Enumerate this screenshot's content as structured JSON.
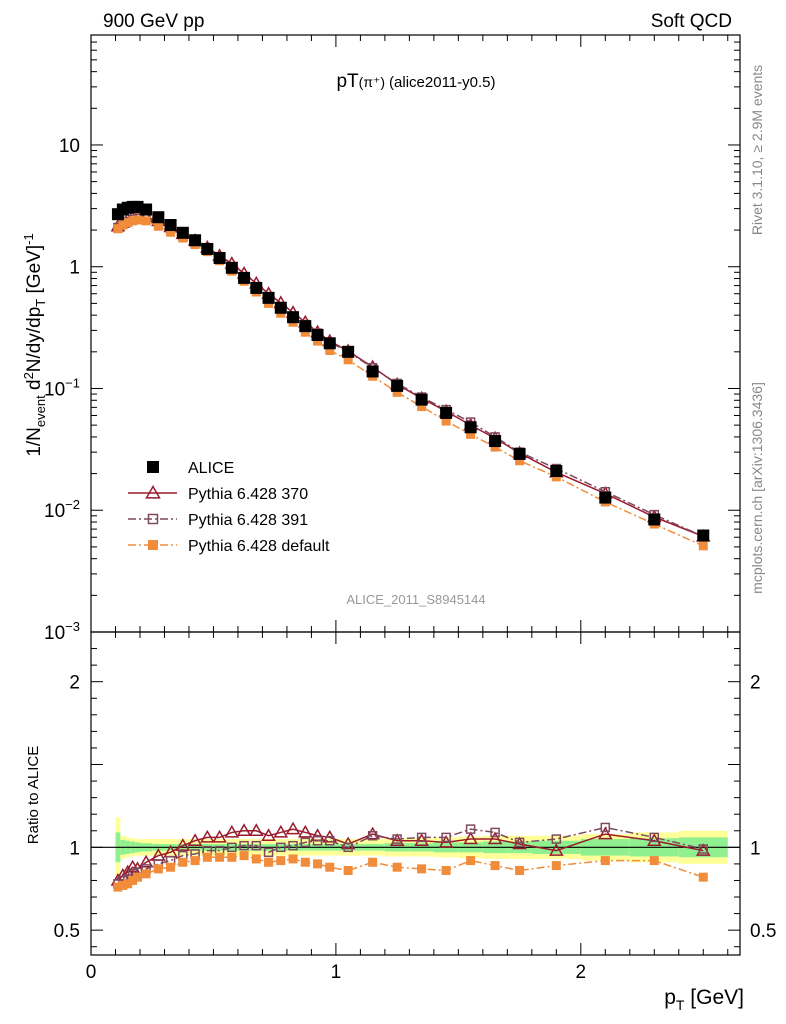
{
  "header": {
    "left": "900 GeV pp",
    "right": "Soft QCD"
  },
  "side_labels": {
    "top": "Rivet 3.1.10, ≥ 2.9M events",
    "bottom": "mcplots.cern.ch [arXiv:1306.3436]"
  },
  "chart_data": [
    {
      "type": "scatter",
      "panel": "main",
      "title": "pT(π⁺) (alice2011-y0.5)",
      "title_main": "pT",
      "title_paren": "(π⁺)",
      "title_tag": "(alice2011-y0.5)",
      "watermark": "ALICE_2011_S8945144",
      "ylabel": "1/N_event d²N/dy/dp_T [GeV]⁻¹",
      "ylabel_parts": {
        "a": "1/N",
        "a_sub": "event",
        "b": " d",
        "b_sup": "2",
        "c": "N/dy/dp",
        "c_sub": "T",
        "d": " [GeV]",
        "d_sup": "-1"
      },
      "yscale": "log",
      "xlim": [
        0,
        2.65
      ],
      "ylim": [
        0.001,
        80
      ],
      "yticks": [
        {
          "value": 10,
          "label": "10"
        },
        {
          "value": 1,
          "label": "1"
        },
        {
          "value": 0.1,
          "label_base": "10",
          "label_exp": "−1"
        },
        {
          "value": 0.01,
          "label_base": "10",
          "label_exp": "−2"
        },
        {
          "value": 0.001,
          "label_base": "10",
          "label_exp": "−3"
        }
      ],
      "x": [
        0.11,
        0.13,
        0.15,
        0.17,
        0.19,
        0.225,
        0.275,
        0.325,
        0.375,
        0.425,
        0.475,
        0.525,
        0.575,
        0.625,
        0.675,
        0.725,
        0.775,
        0.825,
        0.875,
        0.925,
        0.975,
        1.05,
        1.15,
        1.25,
        1.35,
        1.45,
        1.55,
        1.65,
        1.75,
        1.9,
        2.1,
        2.3,
        2.5
      ],
      "series": [
        {
          "name": "ALICE",
          "color": "#000000",
          "marker": "filled-square",
          "line": "none",
          "values": [
            2.7,
            2.95,
            3.05,
            3.1,
            3.1,
            2.95,
            2.55,
            2.2,
            1.9,
            1.65,
            1.4,
            1.18,
            0.98,
            0.81,
            0.67,
            0.555,
            0.46,
            0.385,
            0.325,
            0.275,
            0.235,
            0.2,
            0.138,
            0.105,
            0.081,
            0.063,
            0.048,
            0.037,
            0.029,
            0.021,
            0.0127,
            0.0084,
            0.0062
          ]
        },
        {
          "name": "Pythia 6.428 370",
          "color": "#9a1b2e",
          "marker": "open-triangle",
          "line": "solid",
          "values": [
            2.15,
            2.3,
            2.45,
            2.55,
            2.58,
            2.55,
            2.38,
            2.12,
            1.86,
            1.64,
            1.44,
            1.23,
            1.06,
            0.88,
            0.73,
            0.6,
            0.505,
            0.42,
            0.35,
            0.29,
            0.245,
            0.203,
            0.15,
            0.108,
            0.083,
            0.065,
            0.05,
            0.039,
            0.0295,
            0.0205,
            0.0137,
            0.0088,
            0.0061
          ]
        },
        {
          "name": "Pythia 6.428 391",
          "color": "#7d4a5e",
          "marker": "open-square",
          "line": "dashdot",
          "values": [
            2.1,
            2.25,
            2.35,
            2.45,
            2.5,
            2.5,
            2.32,
            2.05,
            1.8,
            1.58,
            1.38,
            1.17,
            0.98,
            0.82,
            0.675,
            0.54,
            0.46,
            0.39,
            0.335,
            0.285,
            0.24,
            0.2,
            0.148,
            0.11,
            0.085,
            0.067,
            0.053,
            0.04,
            0.03,
            0.022,
            0.0142,
            0.0092,
            0.0061
          ]
        },
        {
          "name": "Pythia 6.428 default",
          "color": "#f08c3a",
          "marker": "filled-square",
          "line": "dashdot",
          "values": [
            2.05,
            2.2,
            2.3,
            2.38,
            2.42,
            2.38,
            2.15,
            1.92,
            1.72,
            1.52,
            1.33,
            1.12,
            0.92,
            0.76,
            0.62,
            0.5,
            0.415,
            0.35,
            0.29,
            0.245,
            0.205,
            0.172,
            0.126,
            0.093,
            0.071,
            0.054,
            0.042,
            0.033,
            0.0255,
            0.0188,
            0.0117,
            0.0077,
            0.0051
          ]
        }
      ]
    },
    {
      "type": "line",
      "panel": "ratio",
      "ylabel": "Ratio to ALICE",
      "xlabel_main": "p",
      "xlabel_sub": "T",
      "xlabel_unit": " [GeV]",
      "xlim": [
        0,
        2.65
      ],
      "ylim": [
        0.35,
        2.3
      ],
      "xticks": [
        {
          "value": 0,
          "label": "0"
        },
        {
          "value": 1,
          "label": "1"
        },
        {
          "value": 2,
          "label": "2"
        }
      ],
      "yticks": [
        {
          "value": 0.5,
          "label": "0.5"
        },
        {
          "value": 1,
          "label": "1"
        },
        {
          "value": 2,
          "label": "2"
        }
      ],
      "reference_line": 1.0,
      "uncertainty_bands": {
        "stat_color": "#90f090",
        "syst_color": "#ffff99",
        "x_edges": [
          0.1,
          0.12,
          0.14,
          0.16,
          0.18,
          0.2,
          0.25,
          0.3,
          0.35,
          0.4,
          0.5,
          0.6,
          0.7,
          0.8,
          0.9,
          1.0,
          1.1,
          1.2,
          1.3,
          1.4,
          1.5,
          1.6,
          1.7,
          1.8,
          2.0,
          2.2,
          2.4,
          2.6
        ],
        "stat_half_width": [
          0.09,
          0.045,
          0.04,
          0.035,
          0.03,
          0.025,
          0.02,
          0.02,
          0.02,
          0.02,
          0.02,
          0.02,
          0.02,
          0.02,
          0.02,
          0.02,
          0.02,
          0.025,
          0.025,
          0.03,
          0.03,
          0.035,
          0.035,
          0.04,
          0.05,
          0.055,
          0.06
        ],
        "syst_half_width": [
          0.18,
          0.07,
          0.06,
          0.055,
          0.05,
          0.05,
          0.05,
          0.05,
          0.05,
          0.05,
          0.05,
          0.05,
          0.05,
          0.05,
          0.05,
          0.05,
          0.05,
          0.055,
          0.055,
          0.06,
          0.065,
          0.07,
          0.07,
          0.07,
          0.08,
          0.09,
          0.1
        ]
      },
      "x": [
        0.11,
        0.13,
        0.15,
        0.17,
        0.19,
        0.225,
        0.275,
        0.325,
        0.375,
        0.425,
        0.475,
        0.525,
        0.575,
        0.625,
        0.675,
        0.725,
        0.775,
        0.825,
        0.875,
        0.925,
        0.975,
        1.05,
        1.15,
        1.25,
        1.35,
        1.45,
        1.55,
        1.65,
        1.75,
        1.9,
        2.1,
        2.3,
        2.5
      ],
      "series": [
        {
          "name": "Pythia 6.428 370",
          "color": "#9a1b2e",
          "marker": "open-triangle",
          "line": "solid",
          "values": [
            0.8,
            0.83,
            0.85,
            0.88,
            0.87,
            0.91,
            0.95,
            0.97,
            1.01,
            1.04,
            1.06,
            1.06,
            1.09,
            1.1,
            1.1,
            1.07,
            1.09,
            1.11,
            1.09,
            1.07,
            1.06,
            1.02,
            1.08,
            1.04,
            1.04,
            1.03,
            1.05,
            1.05,
            1.02,
            0.98,
            1.08,
            1.04,
            0.98
          ]
        },
        {
          "name": "Pythia 6.428 391",
          "color": "#7d4a5e",
          "marker": "open-square",
          "line": "dashdot",
          "values": [
            0.78,
            0.8,
            0.81,
            0.84,
            0.85,
            0.87,
            0.9,
            0.92,
            0.95,
            0.96,
            0.98,
            0.98,
            1.0,
            1.01,
            1.01,
            0.97,
            1.0,
            1.01,
            1.03,
            1.04,
            1.04,
            1.0,
            1.07,
            1.05,
            1.06,
            1.06,
            1.11,
            1.09,
            1.03,
            1.05,
            1.12,
            1.06,
            0.99
          ]
        },
        {
          "name": "Pythia 6.428 default",
          "color": "#f08c3a",
          "marker": "filled-square",
          "line": "dashdot",
          "values": [
            0.76,
            0.77,
            0.78,
            0.8,
            0.82,
            0.84,
            0.87,
            0.88,
            0.91,
            0.92,
            0.94,
            0.94,
            0.94,
            0.95,
            0.93,
            0.91,
            0.92,
            0.93,
            0.91,
            0.9,
            0.88,
            0.86,
            0.91,
            0.88,
            0.87,
            0.86,
            0.92,
            0.89,
            0.86,
            0.89,
            0.92,
            0.92,
            0.82
          ]
        }
      ]
    }
  ]
}
